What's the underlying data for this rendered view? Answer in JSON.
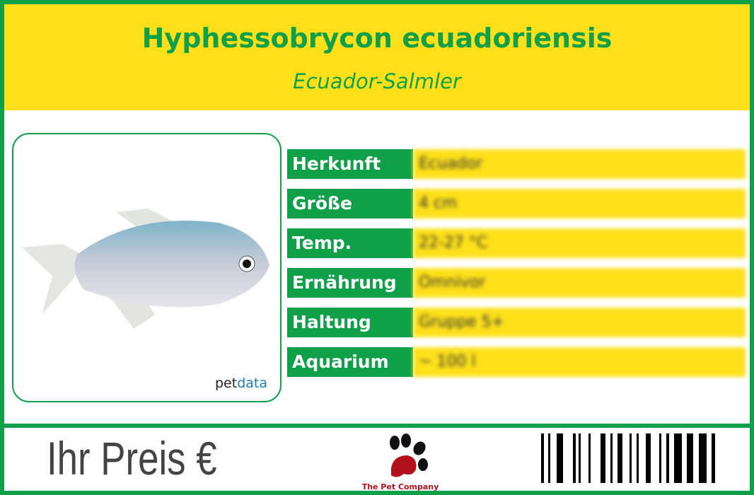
{
  "header": {
    "title": "Hyphessobrycon ecuadoriensis",
    "subtitle": "Ecuador-Salmler"
  },
  "photo": {
    "watermark_prefix": "pet",
    "watermark_suffix": "data"
  },
  "facts": [
    {
      "label": "Herkunft",
      "value": "Ecuador"
    },
    {
      "label": "Größe",
      "value": "4 cm"
    },
    {
      "label": "Temp.",
      "value": "22-27 °C"
    },
    {
      "label": "Ernährung",
      "value": "Omnivor"
    },
    {
      "label": "Haltung",
      "value": "Gruppe 5+"
    },
    {
      "label": "Aquarium",
      "value": "~ 100 l"
    }
  ],
  "footer": {
    "price_label": "Ihr Preis €",
    "logo_text": "The Pet Company"
  },
  "colors": {
    "green": "#11a04a",
    "yellow": "#fde01a",
    "logo_red": "#b3111b"
  }
}
